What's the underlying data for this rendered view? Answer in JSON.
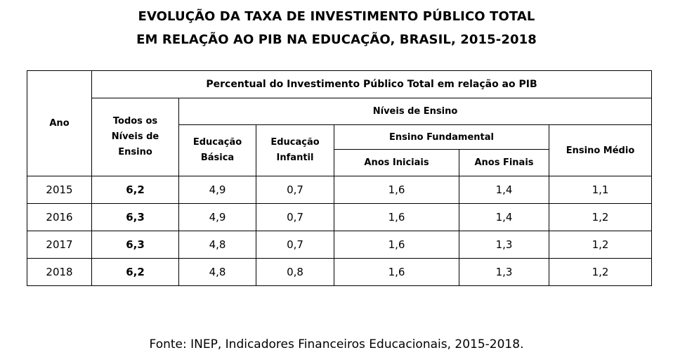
{
  "title": {
    "line1": "EVOLUÇÃO DA TAXA DE INVESTIMENTO PÚBLICO TOTAL",
    "line2": "EM RELAÇÃO AO PIB NA EDUCAÇÃO, BRASIL, 2015-2018"
  },
  "table": {
    "headers": {
      "ano": "Ano",
      "main": "Percentual do Investimento Público Total em relação ao PIB",
      "todos": [
        "Todos os",
        "Níveis de",
        "Ensino"
      ],
      "niveis": "Níveis de Ensino",
      "basica": [
        "Educação",
        "Básica"
      ],
      "infantil": [
        "Educação",
        "Infantil"
      ],
      "fundamental": "Ensino Fundamental",
      "iniciais": "Anos Iniciais",
      "finais": "Anos Finais",
      "medio": "Ensino Médio"
    },
    "rows": [
      [
        "2015",
        "6,2",
        "4,9",
        "0,7",
        "1,6",
        "1,4",
        "1,1"
      ],
      [
        "2016",
        "6,3",
        "4,9",
        "0,7",
        "1,6",
        "1,4",
        "1,2"
      ],
      [
        "2017",
        "6,3",
        "4,8",
        "0,7",
        "1,6",
        "1,3",
        "1,2"
      ],
      [
        "2018",
        "6,2",
        "4,8",
        "0,8",
        "1,6",
        "1,3",
        "1,2"
      ]
    ]
  },
  "source": "Fonte: INEP, Indicadores Financeiros Educacionais, 2015-2018."
}
